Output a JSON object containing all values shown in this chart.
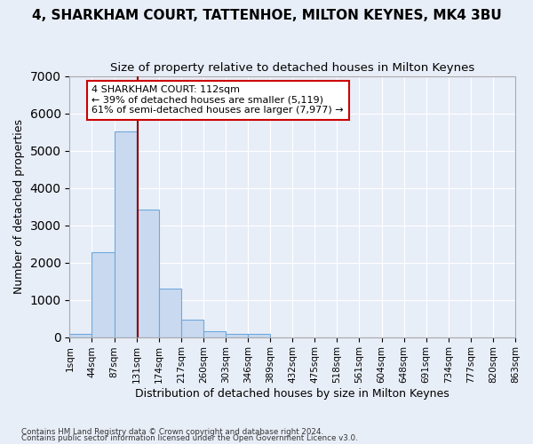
{
  "title": "4, SHARKHAM COURT, TATTENHOE, MILTON KEYNES, MK4 3BU",
  "subtitle": "Size of property relative to detached houses in Milton Keynes",
  "xlabel": "Distribution of detached houses by size in Milton Keynes",
  "ylabel": "Number of detached properties",
  "footnote1": "Contains HM Land Registry data © Crown copyright and database right 2024.",
  "footnote2": "Contains public sector information licensed under the Open Government Licence v3.0.",
  "bin_labels": [
    "1sqm",
    "44sqm",
    "87sqm",
    "131sqm",
    "174sqm",
    "217sqm",
    "260sqm",
    "303sqm",
    "346sqm",
    "389sqm",
    "432sqm",
    "475sqm",
    "518sqm",
    "561sqm",
    "604sqm",
    "648sqm",
    "691sqm",
    "734sqm",
    "777sqm",
    "820sqm",
    "863sqm"
  ],
  "bar_values": [
    75,
    2280,
    5520,
    3430,
    1310,
    475,
    165,
    90,
    75,
    0,
    0,
    0,
    0,
    0,
    0,
    0,
    0,
    0,
    0,
    0
  ],
  "bar_color": "#c9d9f0",
  "bar_edge_color": "#6fa8dc",
  "vline_pos": 2.57,
  "vline_color": "#8b0000",
  "annotation_text": "4 SHARKHAM COURT: 112sqm\n← 39% of detached houses are smaller (5,119)\n61% of semi-detached houses are larger (7,977) →",
  "annotation_box_color": "#ffffff",
  "annotation_box_edge": "#cc0000",
  "ylim": [
    0,
    7000
  ],
  "bg_color": "#e8eef8",
  "grid_color": "#ffffff",
  "title_fontsize": 11,
  "subtitle_fontsize": 9.5,
  "axis_label_fontsize": 9,
  "xlabel_fontsize": 9,
  "tick_fontsize": 7.5
}
